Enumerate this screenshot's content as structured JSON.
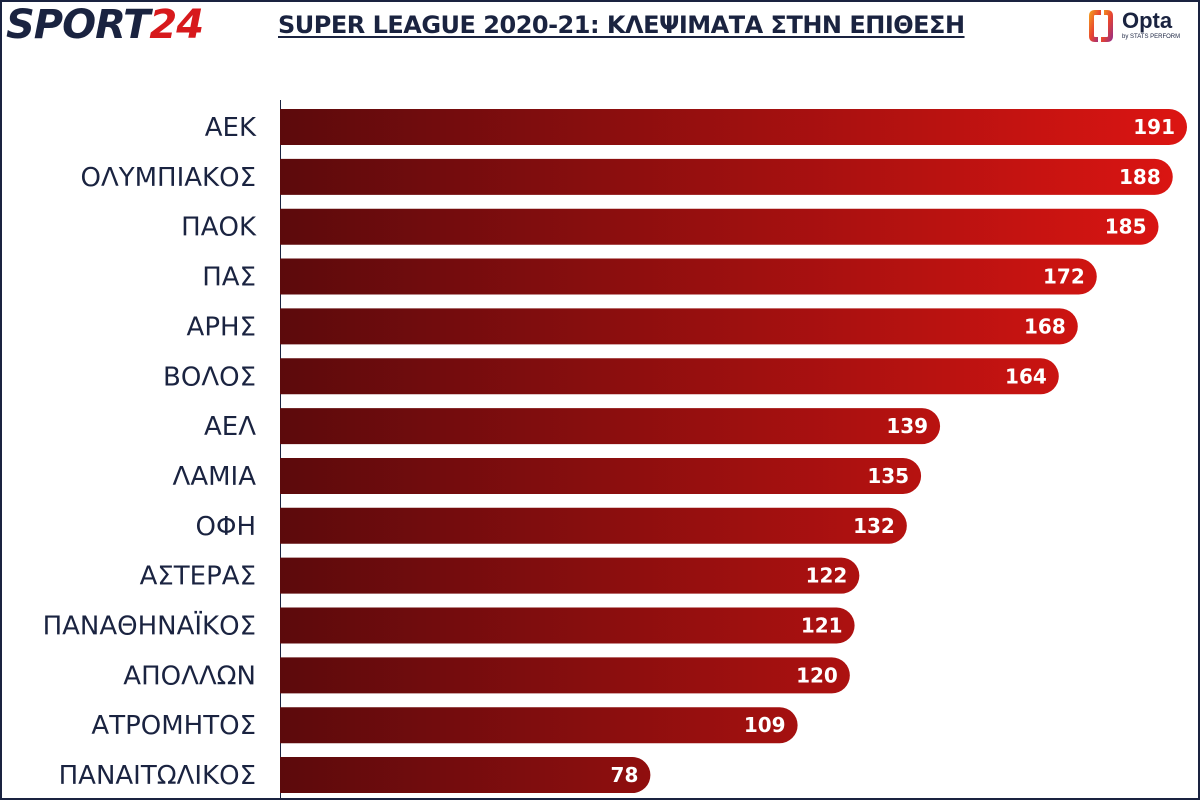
{
  "header": {
    "logo_part1": "SPORT",
    "logo_part2": "24",
    "title": "SUPER LEAGUE 2020-21: ΚΛΕΨΙΜΑΤΑ ΣΤΗΝ ΕΠΙΘΕΣΗ",
    "opta_name": "Opta",
    "opta_sub": "by STATS PERFORM"
  },
  "colors": {
    "navy": "#1a2340",
    "bar_dark": "#5c0a0c",
    "bar_light": "#dc1512",
    "brand_red": "#d7191c"
  },
  "chart_data": {
    "type": "bar",
    "orientation": "horizontal",
    "title": "SUPER LEAGUE 2020-21: ΚΛΕΨΙΜΑΤΑ ΣΤΗΝ ΕΠΙΘΕΣΗ",
    "categories": [
      "ΑΕΚ",
      "ΟΛΥΜΠΙΑΚΟΣ",
      "ΠΑΟΚ",
      "ΠΑΣ",
      "ΑΡΗΣ",
      "ΒΟΛΟΣ",
      "ΑΕΛ",
      "ΛΑΜΙΑ",
      "ΟΦΗ",
      "ΑΣΤΕΡΑΣ",
      "ΠΑΝΑΘΗΝΑΪΚΟΣ",
      "ΑΠΟΛΛΩΝ",
      "ΑΤΡΟΜΗΤΟΣ",
      "ΠΑΝΑΙΤΩΛΙΚΟΣ"
    ],
    "values": [
      191,
      188,
      185,
      172,
      168,
      164,
      139,
      135,
      132,
      122,
      121,
      120,
      109,
      78
    ],
    "xlim": [
      0,
      191
    ],
    "grid": false,
    "data_labels": true
  }
}
